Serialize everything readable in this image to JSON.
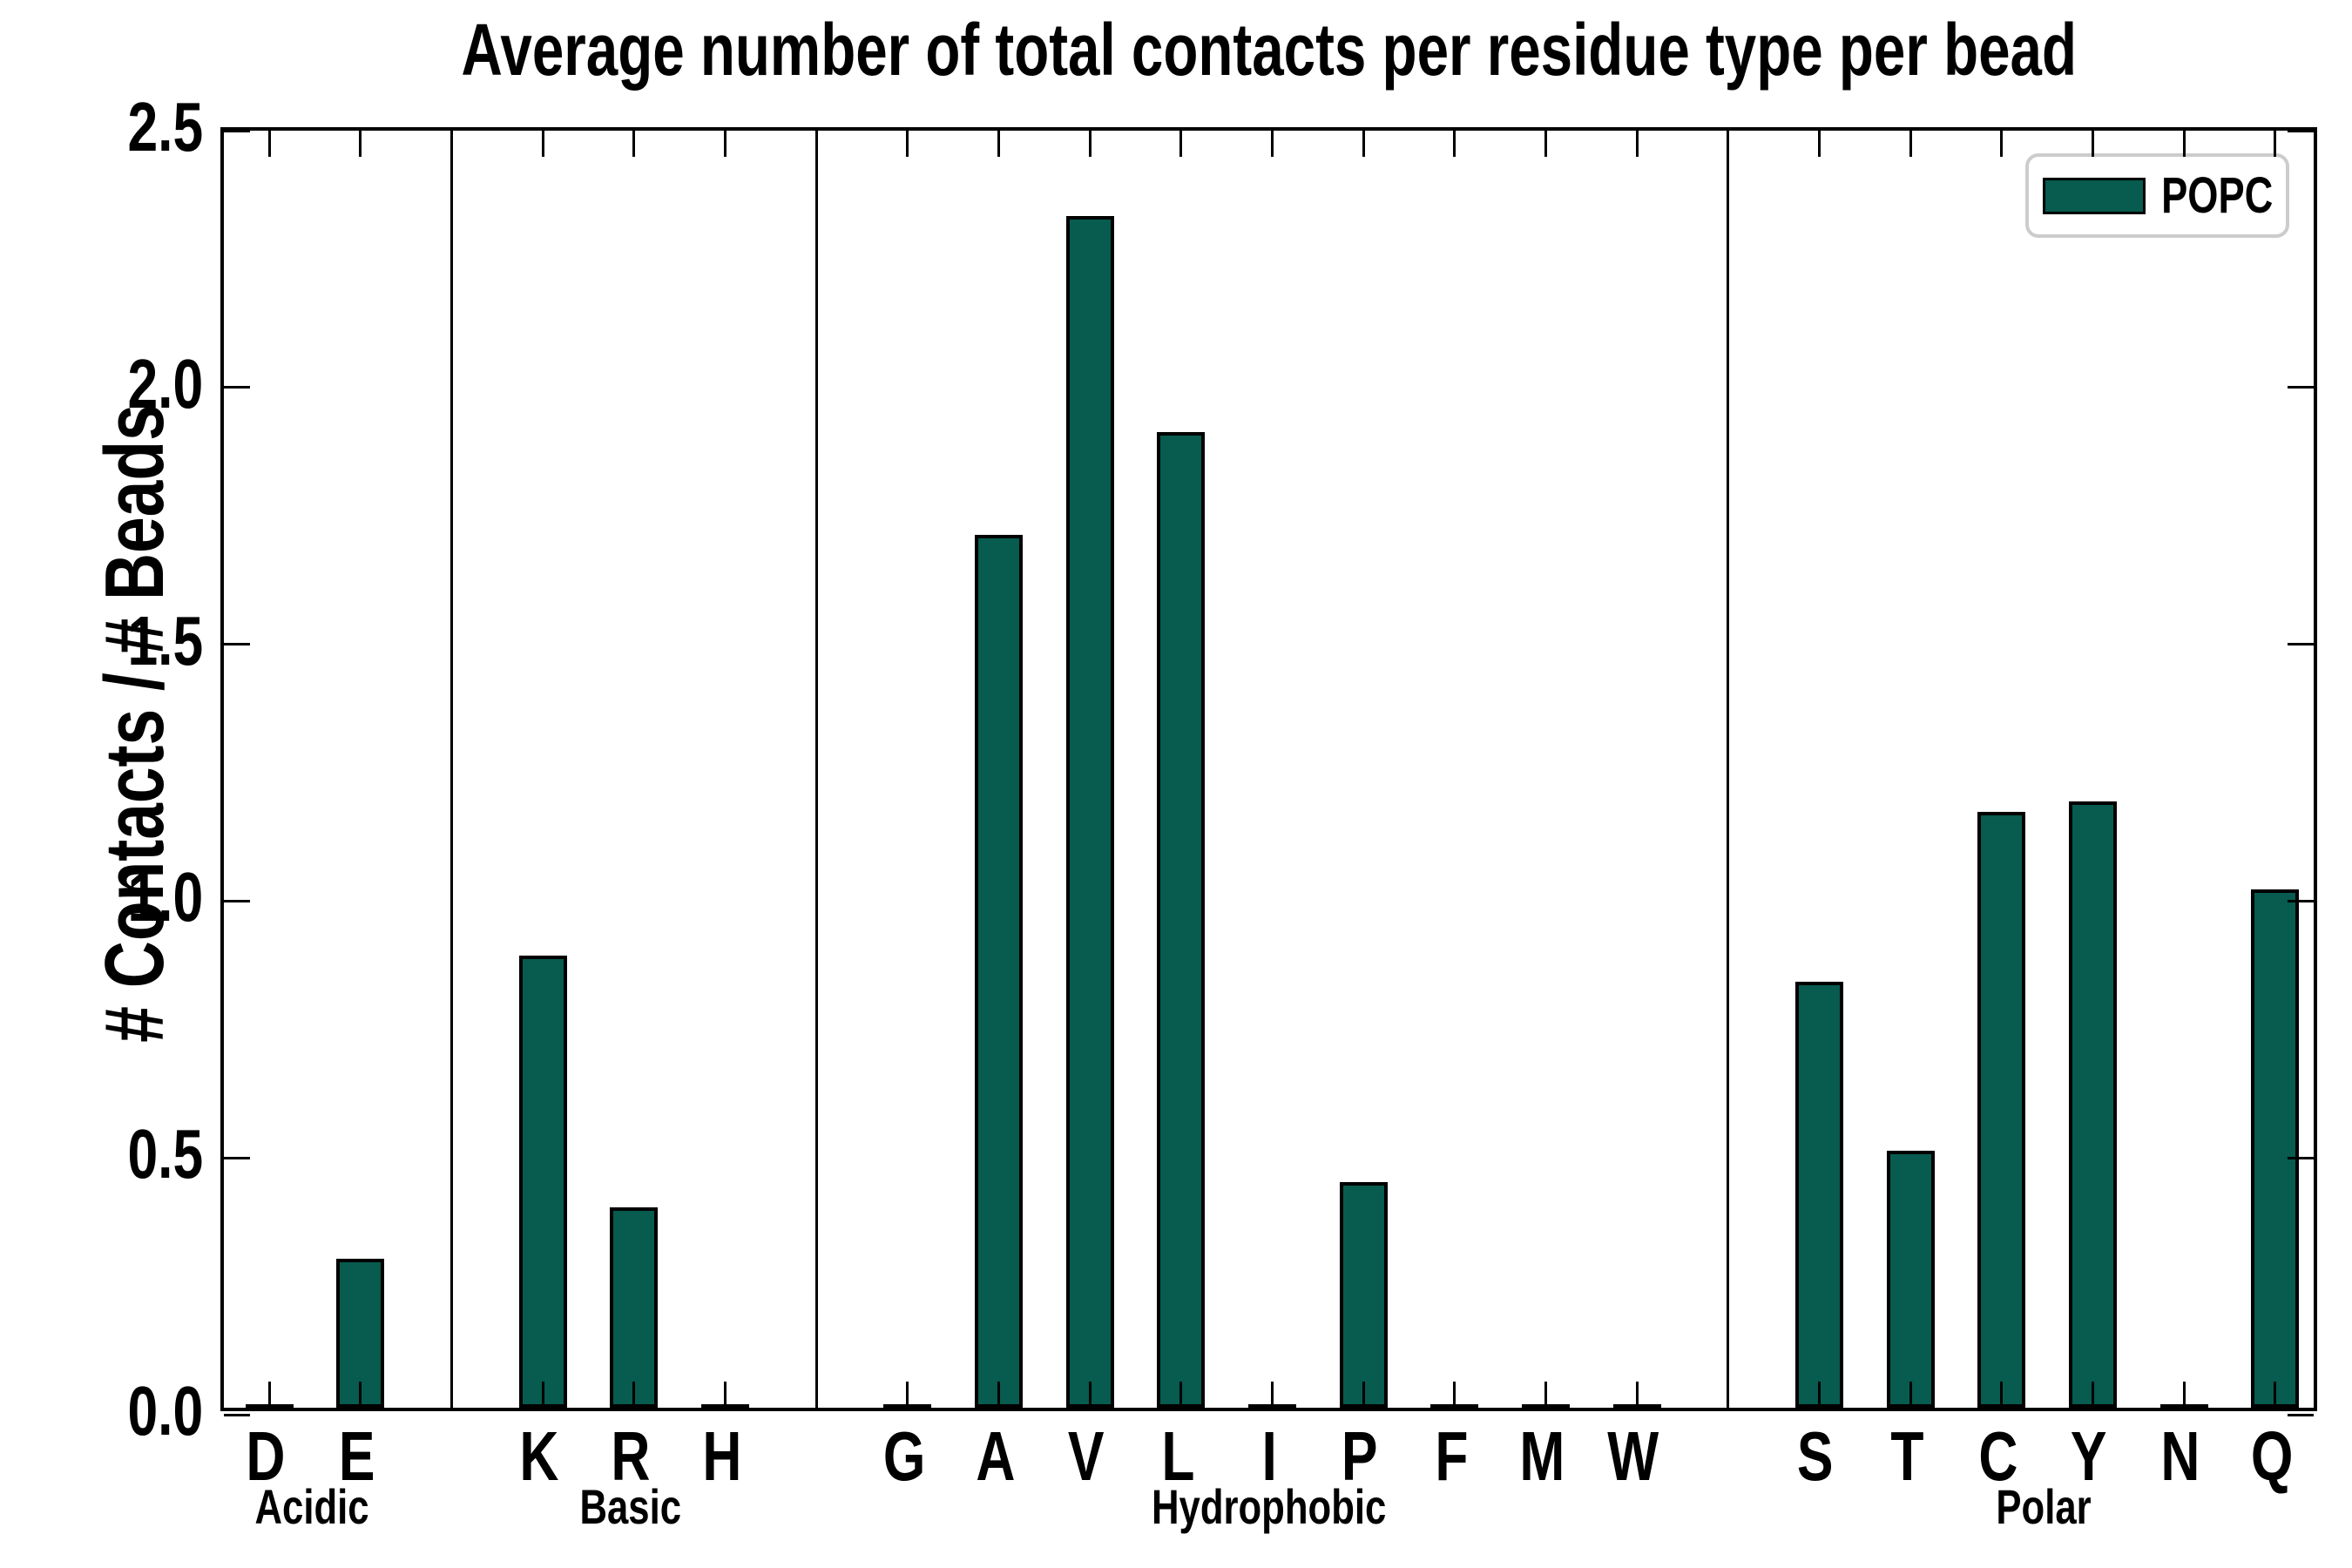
{
  "chart_data": {
    "type": "bar",
    "title": "Average number of total contacts per residue type per bead",
    "ylabel": "# Contacts / # Beads",
    "ylim": [
      0,
      2.5
    ],
    "yticks": [
      "0.0",
      "0.5",
      "1.0",
      "1.5",
      "2.0",
      "2.5"
    ],
    "grid": false,
    "legend": {
      "position": "upper right",
      "entries": [
        {
          "label": "POPC",
          "color": "#075b4f"
        }
      ]
    },
    "groups": [
      {
        "label": "Acidic",
        "categories": [
          "D",
          "E"
        ],
        "values": [
          0.0,
          0.29
        ]
      },
      {
        "label": "Basic",
        "categories": [
          "K",
          "R",
          "H"
        ],
        "values": [
          0.88,
          0.39,
          0.0
        ]
      },
      {
        "label": "Hydrophobic",
        "categories": [
          "G",
          "A",
          "V",
          "L",
          "I",
          "P",
          "F",
          "M",
          "W"
        ],
        "values": [
          0.0,
          1.7,
          2.32,
          1.9,
          0.0,
          0.44,
          0.0,
          0.0,
          0.0
        ]
      },
      {
        "label": "Polar",
        "categories": [
          "S",
          "T",
          "C",
          "Y",
          "N",
          "Q"
        ],
        "values": [
          0.83,
          0.5,
          1.16,
          1.18,
          0.0,
          1.01
        ]
      }
    ],
    "colors": {
      "bar_fill": "#075b4f",
      "bar_edge": "#000000",
      "axis": "#000000",
      "legend_border": "#cccccc",
      "background": "#ffffff"
    }
  }
}
